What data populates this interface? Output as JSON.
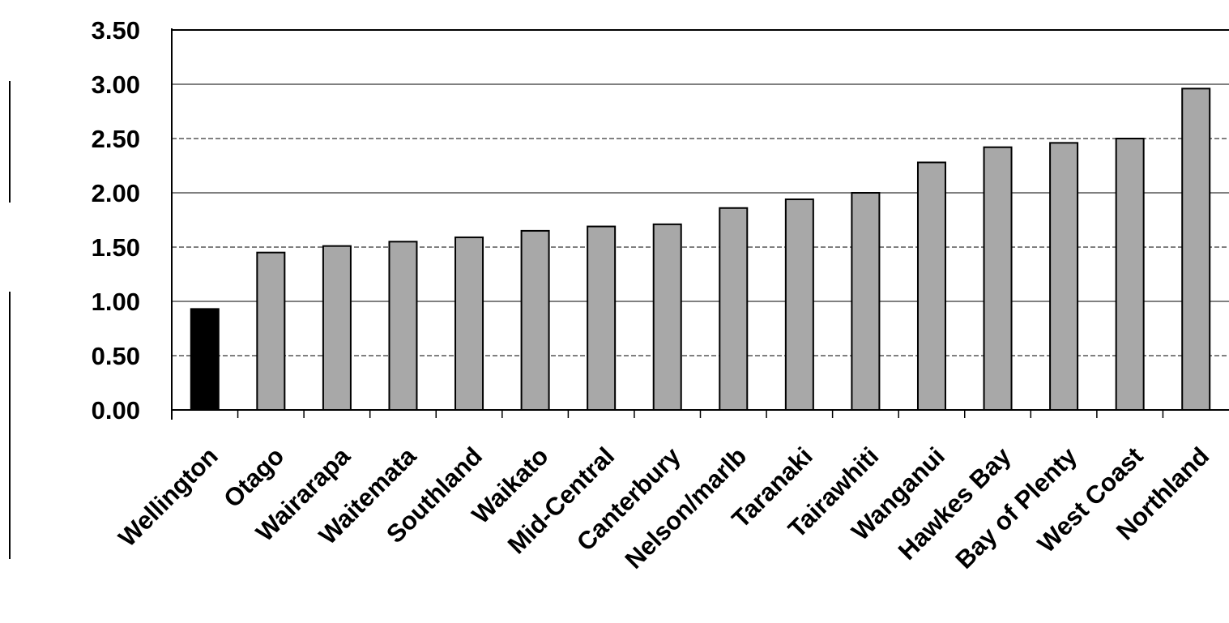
{
  "chart_data": {
    "type": "bar",
    "categories": [
      "Wellington",
      "Otago",
      "Wairarapa",
      "Waitemata",
      "Southland",
      "Waikato",
      "Mid-Central",
      "Canterbury",
      "Nelson/marlb",
      "Taranaki",
      "Tairawhiti",
      "Wanganui",
      "Hawkes Bay",
      "Bay of Plenty",
      "West Coast",
      "Northland"
    ],
    "values": [
      0.93,
      1.45,
      1.51,
      1.55,
      1.59,
      1.65,
      1.69,
      1.71,
      1.86,
      1.94,
      2.0,
      2.28,
      2.42,
      2.46,
      2.5,
      2.96
    ],
    "y_ticks": [
      "0.00",
      "0.50",
      "1.00",
      "1.50",
      "2.00",
      "2.50",
      "3.00",
      "3.50"
    ],
    "ylim": [
      0,
      3.5
    ],
    "grid": true,
    "colors": {
      "highlight": "#000000",
      "bar": "#a8a8a8",
      "bar_edge": "#000000",
      "grid": "#000000"
    },
    "highlight_category": "Wellington",
    "title": "",
    "xlabel": "",
    "ylabel": ""
  }
}
